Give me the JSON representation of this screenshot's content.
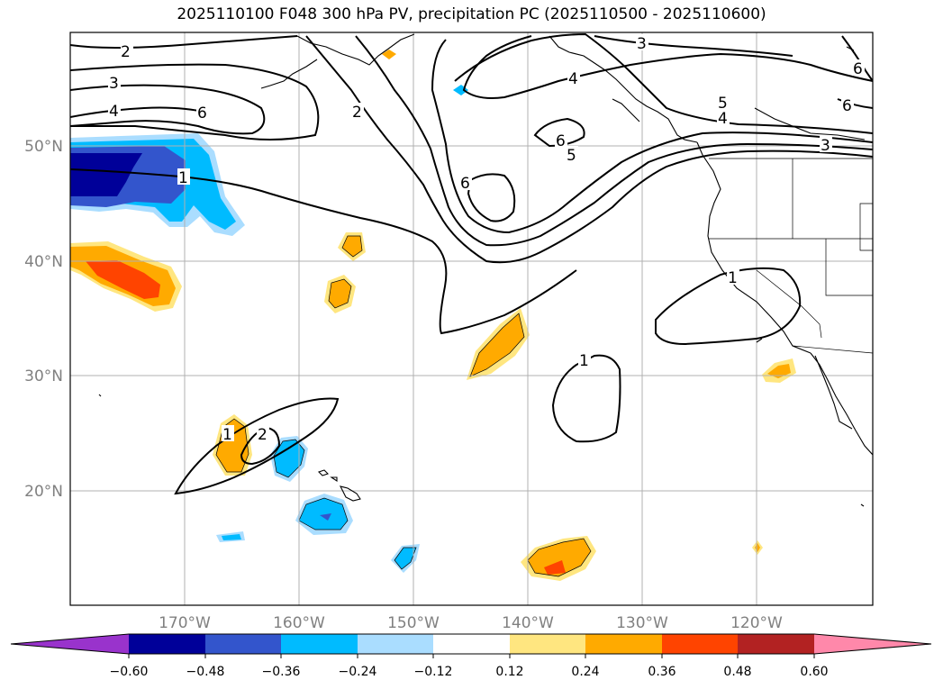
{
  "title": "2025110100 F048 300 hPa PV, precipitation PC (2025110500 - 2025110600)",
  "axes": {
    "lat_ticks": [
      "50°N",
      "40°N",
      "30°N",
      "20°N"
    ],
    "lon_ticks": [
      "170°W",
      "160°W",
      "150°W",
      "140°W",
      "130°W",
      "120°W"
    ]
  },
  "contour_labels": [
    "2",
    "3",
    "4",
    "2",
    "3",
    "4",
    "6",
    "6",
    "5",
    "6",
    "5",
    "4",
    "3",
    "6",
    "6",
    "1",
    "1",
    "1",
    "1",
    "2"
  ],
  "colorbar": {
    "colors": [
      "#9933cc",
      "#000099",
      "#3355cc",
      "#00bbff",
      "#aaddff",
      "#ffffff",
      "#ffe680",
      "#ffaa00",
      "#ff4400",
      "#b22222",
      "#ff88aa"
    ],
    "labels": [
      "−0.60",
      "−0.48",
      "−0.36",
      "−0.24",
      "−0.12",
      "0.12",
      "0.24",
      "0.36",
      "0.48",
      "0.60"
    ]
  }
}
